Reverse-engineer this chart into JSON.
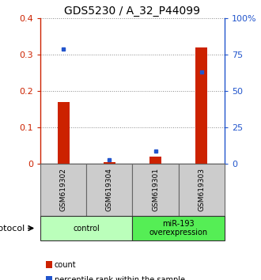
{
  "title": "GDS5230 / A_32_P44099",
  "samples": [
    "GSM619302",
    "GSM619304",
    "GSM619301",
    "GSM619303"
  ],
  "red_values": [
    0.17,
    0.005,
    0.02,
    0.32
  ],
  "blue_values": [
    79,
    3,
    9,
    63
  ],
  "ylim_left": [
    0,
    0.4
  ],
  "ylim_right": [
    0,
    100
  ],
  "yticks_left": [
    0,
    0.1,
    0.2,
    0.3,
    0.4
  ],
  "yticks_right": [
    0,
    25,
    50,
    75,
    100
  ],
  "ytick_labels_left": [
    "0",
    "0.1",
    "0.2",
    "0.3",
    "0.4"
  ],
  "ytick_labels_right": [
    "0",
    "25",
    "50",
    "75",
    "100%"
  ],
  "groups": [
    {
      "label": "control",
      "samples": [
        0,
        1
      ],
      "color": "#bbffbb"
    },
    {
      "label": "miR-193\noverexpression",
      "samples": [
        2,
        3
      ],
      "color": "#55ee55"
    }
  ],
  "protocol_label": "protocol",
  "red_color": "#cc2200",
  "blue_color": "#2255cc",
  "bar_width": 0.25,
  "dotted_grid_color": "#888888",
  "sample_box_color": "#cccccc",
  "sample_box_edge": "#666666",
  "legend_items": [
    {
      "color": "#cc2200",
      "label": "count"
    },
    {
      "color": "#2255cc",
      "label": "percentile rank within the sample"
    }
  ]
}
